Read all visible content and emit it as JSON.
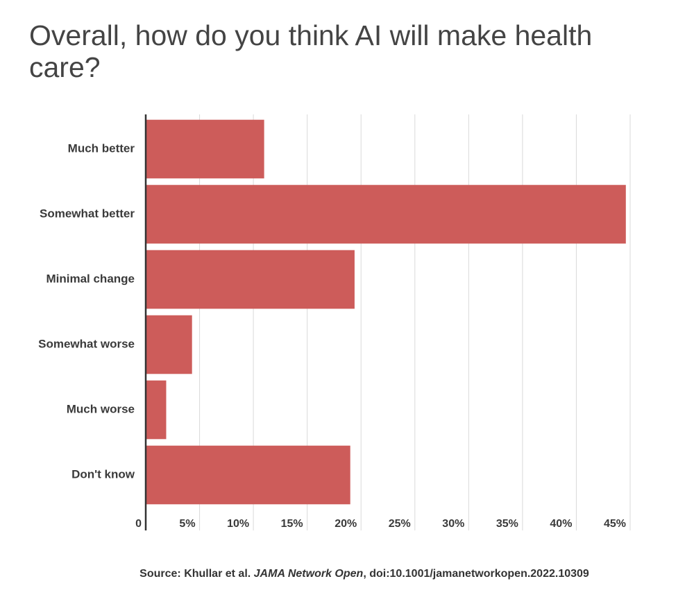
{
  "chart_data": {
    "type": "bar",
    "orientation": "horizontal",
    "title": "Overall, how do you think AI will make health care?",
    "categories": [
      "Much better",
      "Somewhat better",
      "Minimal change",
      "Somewhat worse",
      "Much worse",
      "Don't know"
    ],
    "values": [
      11,
      44.6,
      19.4,
      4.3,
      1.9,
      19
    ],
    "color": "#cd5c5a",
    "xlim": [
      0,
      45
    ],
    "xticks": [
      0,
      {
        "value": 5,
        "label": "5%"
      },
      {
        "value": 10,
        "label": "10%"
      },
      {
        "value": 15,
        "label": "15%"
      },
      {
        "value": 20,
        "label": "20%"
      },
      {
        "value": 25,
        "label": "25%"
      },
      {
        "value": 30,
        "label": "30%"
      },
      {
        "value": 35,
        "label": "35%"
      },
      {
        "value": 40,
        "label": "40%"
      },
      {
        "value": 45,
        "label": "45%"
      }
    ],
    "grid": true,
    "source": {
      "prefix": "Source: Khullar et al. ",
      "journal": "JAMA Network Open",
      "rest": ",  doi:10.1001/jamanetworkopen.2022.10309"
    }
  }
}
